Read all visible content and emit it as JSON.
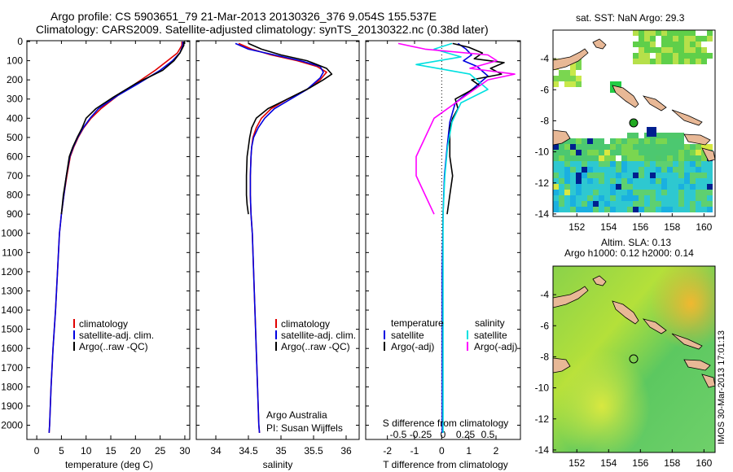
{
  "titles": {
    "line1": "Argo profile: CS 5903651_79 21-Mar-2013 20130326_376 9.054S 155.537E",
    "line2": "Climatology: CARS2009. Satellite-adjusted climatology: synTS_20130322.nc (0.38d later)"
  },
  "depth_ticks": [
    "0",
    "100",
    "200",
    "300",
    "400",
    "500",
    "600",
    "700",
    "800",
    "900",
    "1000",
    "1100",
    "1200",
    "1300",
    "1400",
    "1500",
    "1600",
    "1700",
    "1800",
    "1900",
    "2000"
  ],
  "chart_data": [
    {
      "type": "line",
      "name": "temperature",
      "xlabel": "temperature (deg C)",
      "ylabel": "",
      "xlim": [
        -2,
        31
      ],
      "ylim": [
        0,
        2070
      ],
      "xticks": [
        "0",
        "5",
        "10",
        "15",
        "20",
        "25",
        "30"
      ],
      "legend": [
        "climatology",
        "satellite-adj. clim.",
        "Argo(..raw -QC)"
      ],
      "series": [
        {
          "name": "climatology",
          "color": "#e00000",
          "points": [
            [
              29.4,
              0
            ],
            [
              29.4,
              20
            ],
            [
              28.5,
              60
            ],
            [
              26.5,
              100
            ],
            [
              24,
              150
            ],
            [
              20,
              220
            ],
            [
              16.5,
              280
            ],
            [
              13,
              350
            ],
            [
              11,
              400
            ],
            [
              9.5,
              450
            ],
            [
              8.4,
              500
            ],
            [
              7.5,
              550
            ],
            [
              6.8,
              600
            ],
            [
              6.1,
              700
            ],
            [
              5.5,
              800
            ],
            [
              5,
              900
            ],
            [
              4.6,
              1000
            ],
            [
              4.2,
              1200
            ],
            [
              3.8,
              1400
            ],
            [
              3.3,
              1600
            ],
            [
              2.9,
              1800
            ],
            [
              2.6,
              2000
            ],
            [
              2.5,
              2040
            ]
          ]
        },
        {
          "name": "satellite-adj. clim.",
          "color": "#0000e0",
          "points": [
            [
              29.6,
              0
            ],
            [
              29.6,
              20
            ],
            [
              29,
              60
            ],
            [
              27.5,
              100
            ],
            [
              25,
              150
            ],
            [
              20.5,
              220
            ],
            [
              16.5,
              280
            ],
            [
              12.5,
              350
            ],
            [
              10.8,
              400
            ],
            [
              9.4,
              450
            ],
            [
              8.3,
              500
            ],
            [
              7.4,
              550
            ],
            [
              6.7,
              600
            ],
            [
              6,
              700
            ],
            [
              5.5,
              800
            ],
            [
              5,
              900
            ],
            [
              4.6,
              1000
            ],
            [
              4.2,
              1200
            ],
            [
              3.8,
              1400
            ],
            [
              3.3,
              1600
            ],
            [
              2.9,
              1800
            ],
            [
              2.6,
              2000
            ],
            [
              2.5,
              2040
            ]
          ]
        },
        {
          "name": "Argo(..raw -QC)",
          "color": "#000000",
          "points": [
            [
              29.8,
              0
            ],
            [
              29.8,
              20
            ],
            [
              29,
              60
            ],
            [
              27.8,
              100
            ],
            [
              25.5,
              150
            ],
            [
              20,
              220
            ],
            [
              15.5,
              290
            ],
            [
              12,
              350
            ],
            [
              10,
              400
            ],
            [
              9.2,
              450
            ],
            [
              8.2,
              500
            ],
            [
              7.3,
              550
            ],
            [
              6.6,
              600
            ],
            [
              6,
              700
            ],
            [
              5.4,
              800
            ],
            [
              5,
              900
            ]
          ]
        }
      ]
    },
    {
      "type": "line",
      "name": "salinity",
      "xlabel": "salinity",
      "ylabel": "",
      "xlim": [
        33.7,
        36.2
      ],
      "ylim": [
        0,
        2070
      ],
      "xticks": [
        "34",
        "34.5",
        "35",
        "35.5",
        "36"
      ],
      "legend": [
        "climatology",
        "satellite-adj. clim.",
        "Argo(..raw -QC)"
      ],
      "series": [
        {
          "name": "climatology",
          "color": "#e00000",
          "points": [
            [
              34.35,
              10
            ],
            [
              34.55,
              40
            ],
            [
              34.85,
              70
            ],
            [
              35.25,
              100
            ],
            [
              35.55,
              130
            ],
            [
              35.7,
              160
            ],
            [
              35.6,
              200
            ],
            [
              35.4,
              250
            ],
            [
              35.1,
              300
            ],
            [
              34.85,
              350
            ],
            [
              34.7,
              400
            ],
            [
              34.62,
              450
            ],
            [
              34.57,
              500
            ],
            [
              34.55,
              550
            ],
            [
              34.54,
              600
            ],
            [
              34.53,
              700
            ],
            [
              34.53,
              800
            ],
            [
              34.54,
              900
            ],
            [
              34.56,
              1000
            ],
            [
              34.58,
              1200
            ],
            [
              34.6,
              1400
            ],
            [
              34.62,
              1600
            ],
            [
              34.64,
              1800
            ],
            [
              34.66,
              2000
            ],
            [
              34.67,
              2040
            ]
          ]
        },
        {
          "name": "satellite-adj. clim.",
          "color": "#0000e0",
          "points": [
            [
              34.3,
              10
            ],
            [
              34.5,
              40
            ],
            [
              34.9,
              70
            ],
            [
              35.3,
              100
            ],
            [
              35.6,
              130
            ],
            [
              35.65,
              160
            ],
            [
              35.6,
              190
            ],
            [
              35.4,
              250
            ],
            [
              35.15,
              300
            ],
            [
              34.9,
              350
            ],
            [
              34.75,
              400
            ],
            [
              34.65,
              450
            ],
            [
              34.58,
              500
            ],
            [
              34.55,
              550
            ],
            [
              34.54,
              600
            ],
            [
              34.53,
              700
            ],
            [
              34.53,
              800
            ],
            [
              34.54,
              900
            ],
            [
              34.56,
              1000
            ],
            [
              34.58,
              1200
            ],
            [
              34.6,
              1400
            ],
            [
              34.62,
              1600
            ],
            [
              34.64,
              1800
            ],
            [
              34.66,
              2000
            ],
            [
              34.67,
              2040
            ]
          ]
        },
        {
          "name": "Argo(..raw -QC)",
          "color": "#000000",
          "points": [
            [
              34.5,
              10
            ],
            [
              34.7,
              40
            ],
            [
              35.0,
              70
            ],
            [
              35.4,
              100
            ],
            [
              35.7,
              140
            ],
            [
              35.78,
              170
            ],
            [
              35.65,
              200
            ],
            [
              35.45,
              240
            ],
            [
              35.1,
              300
            ],
            [
              34.8,
              350
            ],
            [
              34.62,
              400
            ],
            [
              34.55,
              450
            ],
            [
              34.52,
              500
            ],
            [
              34.5,
              550
            ],
            [
              34.48,
              600
            ],
            [
              34.47,
              700
            ],
            [
              34.47,
              800
            ],
            [
              34.48,
              850
            ],
            [
              34.5,
              900
            ]
          ]
        }
      ]
    },
    {
      "type": "line",
      "name": "difference",
      "xlabel": "T difference from climatology",
      "ylabel": "",
      "xlim": [
        -2.8,
        2.9
      ],
      "ylim": [
        0,
        2070
      ],
      "xticks": [
        "-2",
        "-1",
        "0",
        "1",
        "2"
      ],
      "top_axis_label": "S difference from climatology",
      "top_ticks": [
        "-0.5",
        "-0.25",
        "0",
        "0.25",
        "0.5"
      ],
      "legend_titles": [
        "temperature",
        "salinity"
      ],
      "legend": [
        "satellite",
        "Argo(-adj)",
        "satellite",
        "Argo(-adj)"
      ],
      "series": [
        {
          "name": "temperature satellite",
          "color": "#0000e0",
          "points": [
            [
              0.6,
              10
            ],
            [
              0.9,
              40
            ],
            [
              1.1,
              70
            ],
            [
              0.8,
              100
            ],
            [
              1.3,
              130
            ],
            [
              1.7,
              180
            ],
            [
              1.2,
              240
            ],
            [
              0.5,
              320
            ],
            [
              0.3,
              420
            ],
            [
              0.2,
              550
            ],
            [
              0.1,
              700
            ],
            [
              0.05,
              900
            ],
            [
              0.02,
              1200
            ],
            [
              0.02,
              1600
            ],
            [
              0.02,
              2040
            ]
          ]
        },
        {
          "name": "temperature Argo(-adj)",
          "color": "#000000",
          "points": [
            [
              0.4,
              10
            ],
            [
              1.0,
              30
            ],
            [
              1.5,
              60
            ],
            [
              1.2,
              90
            ],
            [
              2.3,
              110
            ],
            [
              1.8,
              140
            ],
            [
              2.2,
              170
            ],
            [
              1.1,
              200
            ],
            [
              1.4,
              230
            ],
            [
              0.5,
              300
            ],
            [
              0.6,
              350
            ],
            [
              0.4,
              400
            ],
            [
              0.3,
              450
            ],
            [
              0.3,
              600
            ],
            [
              0.4,
              700
            ],
            [
              0.3,
              800
            ],
            [
              0.2,
              900
            ]
          ]
        },
        {
          "name": "salinity satellite",
          "color": "#00e0e0",
          "points": [
            [
              0.1,
              10
            ],
            [
              -0.1,
              40
            ],
            [
              0.2,
              80
            ],
            [
              -0.3,
              120
            ],
            [
              0.3,
              170
            ],
            [
              0.5,
              250
            ],
            [
              0.2,
              320
            ],
            [
              0.1,
              420
            ],
            [
              0.05,
              550
            ],
            [
              0.02,
              700
            ],
            [
              0.0,
              900
            ],
            [
              0.0,
              1200
            ],
            [
              0.0,
              1600
            ],
            [
              0.0,
              2040
            ]
          ]
        },
        {
          "name": "salinity Argo(-adj)",
          "color": "#ff00ff",
          "points": [
            [
              -0.5,
              10
            ],
            [
              -0.2,
              40
            ],
            [
              0.5,
              70
            ],
            [
              0.6,
              100
            ],
            [
              0.3,
              140
            ],
            [
              0.8,
              170
            ],
            [
              0.5,
              200
            ],
            [
              0.2,
              300
            ],
            [
              -0.1,
              400
            ],
            [
              -0.2,
              500
            ],
            [
              -0.3,
              600
            ],
            [
              -0.3,
              700
            ],
            [
              -0.2,
              800
            ],
            [
              -0.1,
              900
            ]
          ]
        }
      ]
    }
  ],
  "map1": {
    "title": "sat. SST: NaN Argo: 29.3",
    "yticks": [
      "-4",
      "-6",
      "-8",
      "-10",
      "-12",
      "-14"
    ],
    "xticks": [
      "152",
      "154",
      "156",
      "158",
      "160"
    ]
  },
  "map2": {
    "title1": "Altim. SLA: 0.13",
    "title2": "Argo h1000: 0.12 h2000: 0.14",
    "yticks": [
      "-4",
      "-6",
      "-8",
      "-10",
      "-12",
      "-14"
    ],
    "xticks": [
      "152",
      "154",
      "156",
      "158",
      "160"
    ]
  },
  "panel_notes": {
    "institution": "Argo Australia",
    "pi": "PI: Susan Wijffels"
  },
  "stamp": "IMOS 30-Mar-2013 17:01:13",
  "colors": {
    "climatology": "#e00000",
    "satellite": "#0000e0",
    "argo": "#000000",
    "cyan": "#00e0e0",
    "magenta": "#ff00ff",
    "land": "#e8b896"
  }
}
